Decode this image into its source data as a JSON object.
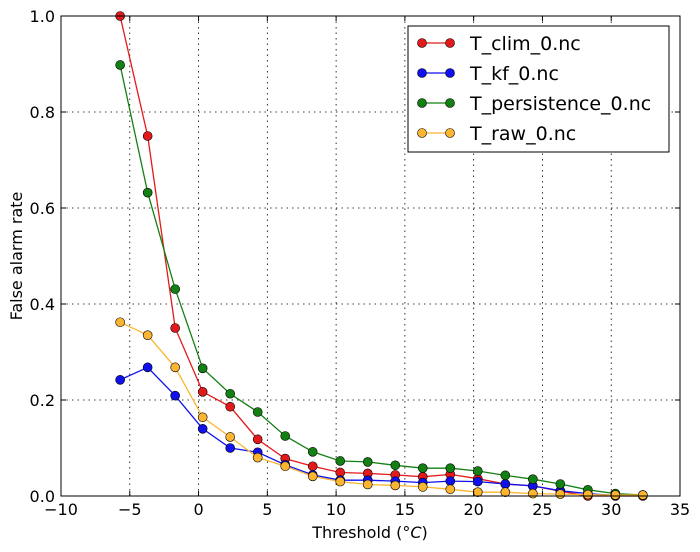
{
  "chart_data": {
    "type": "line",
    "xlabel": "Threshold (",
    "xlabel_unit": "°C",
    "xlabel_close": ")",
    "ylabel": "False alarm rate",
    "xlim": [
      -10,
      35
    ],
    "ylim": [
      0,
      1.0
    ],
    "xticks": [
      "−10",
      "−5",
      "0",
      "5",
      "10",
      "15",
      "20",
      "25",
      "30",
      "35"
    ],
    "xtick_values": [
      -10,
      -5,
      0,
      5,
      10,
      15,
      20,
      25,
      30,
      35
    ],
    "yticks": [
      "0.0",
      "0.2",
      "0.4",
      "0.6",
      "0.8",
      "1.0"
    ],
    "ytick_values": [
      0,
      0.2,
      0.4,
      0.6,
      0.8,
      1.0
    ],
    "grid": true,
    "legend_position": "top-right",
    "x": [
      -5.7,
      -3.7,
      -1.7,
      0.3,
      2.3,
      4.3,
      6.3,
      8.3,
      10.3,
      12.3,
      14.3,
      16.3,
      18.3,
      20.3,
      22.3,
      24.3,
      26.3,
      28.3,
      30.3,
      32.3
    ],
    "series": [
      {
        "name": "T_clim_0.nc",
        "color": "#e31a1c",
        "values": [
          1.0,
          0.75,
          0.35,
          0.217,
          0.186,
          0.118,
          0.078,
          0.062,
          0.049,
          0.047,
          0.044,
          0.04,
          0.045,
          0.036,
          0.025,
          0.021,
          0.01,
          0.0,
          0.0,
          0.0
        ]
      },
      {
        "name": "T_kf_0.nc",
        "color": "#1010ee",
        "values": [
          0.242,
          0.268,
          0.209,
          0.14,
          0.1,
          0.091,
          0.065,
          0.044,
          0.033,
          0.033,
          0.031,
          0.028,
          0.031,
          0.03,
          0.025,
          0.021,
          0.011,
          0.005,
          0.001,
          0.002
        ]
      },
      {
        "name": "T_persistence_0.nc",
        "color": "#138013",
        "values": [
          0.898,
          0.632,
          0.431,
          0.266,
          0.213,
          0.175,
          0.125,
          0.092,
          0.073,
          0.071,
          0.064,
          0.058,
          0.058,
          0.052,
          0.043,
          0.035,
          0.025,
          0.013,
          0.005,
          0.002
        ]
      },
      {
        "name": "T_raw_0.nc",
        "color": "#fbb531",
        "values": [
          0.362,
          0.335,
          0.268,
          0.164,
          0.123,
          0.08,
          0.062,
          0.041,
          0.03,
          0.024,
          0.022,
          0.019,
          0.014,
          0.008,
          0.008,
          0.005,
          0.004,
          0.003,
          0.002,
          0.002
        ]
      }
    ]
  }
}
